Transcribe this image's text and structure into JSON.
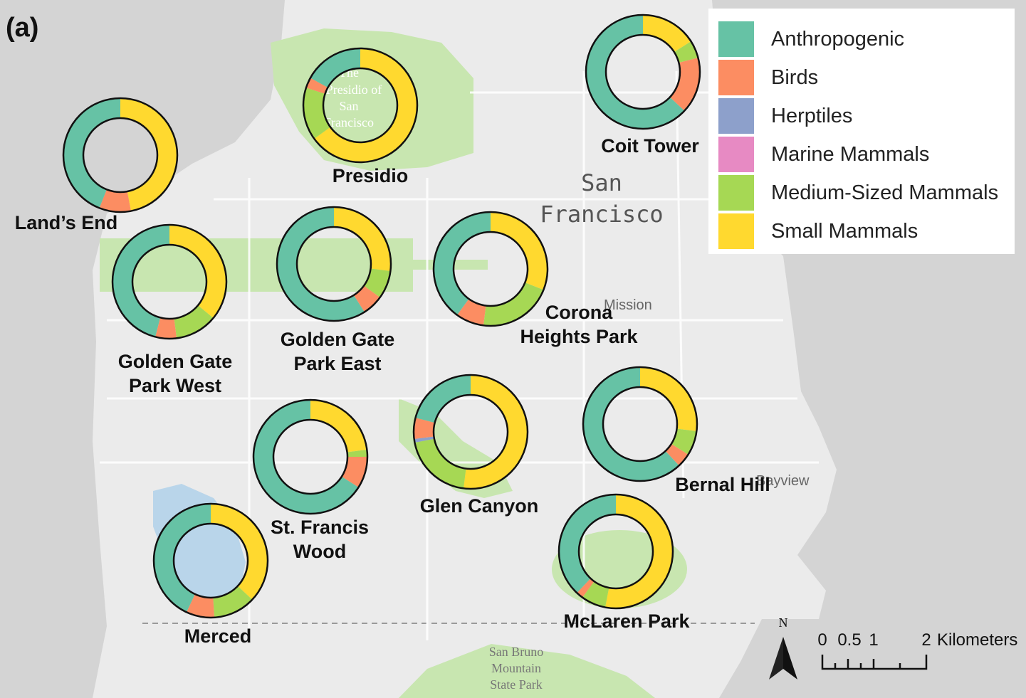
{
  "panel_label": "(a)",
  "legend": {
    "items": [
      {
        "label": "Anthropogenic",
        "color": "#66c2a5"
      },
      {
        "label": "Birds",
        "color": "#fc8d62"
      },
      {
        "label": "Herptiles",
        "color": "#8da0cb"
      },
      {
        "label": "Marine Mammals",
        "color": "#e78ac3"
      },
      {
        "label": "Medium-Sized Mammals",
        "color": "#a6d854"
      },
      {
        "label": "Small Mammals",
        "color": "#ffd92f"
      }
    ]
  },
  "base_map_labels": {
    "city_line1": "San",
    "city_line2": "Francisco",
    "mission": "Mission",
    "bayview": "Bayview",
    "presidio_line1": "The",
    "presidio_line2": "Presidio of",
    "presidio_line3": "San",
    "presidio_line4": "Francisco",
    "sanbruno_line1": "San Bruno",
    "sanbruno_line2": "Mountain",
    "sanbruno_line3": "State Park"
  },
  "scale_bar": {
    "north": "N",
    "tick_labels": [
      "0",
      "0.5",
      "1",
      "2"
    ],
    "unit": "Kilometers"
  },
  "chart_data": {
    "type": "donut",
    "categories": [
      "Anthropogenic",
      "Birds",
      "Herptiles",
      "Marine Mammals",
      "Medium-Sized Mammals",
      "Small Mammals"
    ],
    "sites": [
      {
        "name": "Coit Tower",
        "label_lines": [
          "Coit Tower"
        ],
        "values": [
          0.63,
          0.16,
          0.0,
          0.0,
          0.05,
          0.16
        ]
      },
      {
        "name": "Presidio",
        "label_lines": [
          "Presidio"
        ],
        "values": [
          0.17,
          0.03,
          0.0,
          0.0,
          0.15,
          0.65
        ]
      },
      {
        "name": "Land's End",
        "label_lines": [
          "Land’s End"
        ],
        "values": [
          0.44,
          0.09,
          0.0,
          0.0,
          0.0,
          0.47
        ]
      },
      {
        "name": "Golden Gate Park West",
        "label_lines": [
          "Golden Gate",
          "Park West"
        ],
        "values": [
          0.46,
          0.06,
          0.0,
          0.0,
          0.12,
          0.36
        ]
      },
      {
        "name": "Golden Gate Park East",
        "label_lines": [
          "Golden Gate",
          "Park East"
        ],
        "values": [
          0.59,
          0.06,
          0.0,
          0.0,
          0.08,
          0.27
        ]
      },
      {
        "name": "Corona Heights Park",
        "label_lines": [
          "Corona",
          "Heights Park"
        ],
        "values": [
          0.4,
          0.08,
          0.0,
          0.0,
          0.21,
          0.31
        ]
      },
      {
        "name": "St. Francis Wood",
        "label_lines": [
          "St. Francis",
          "Wood"
        ],
        "values": [
          0.66,
          0.09,
          0.0,
          0.0,
          0.02,
          0.23
        ]
      },
      {
        "name": "Glen Canyon",
        "label_lines": [
          "Glen Canyon"
        ],
        "values": [
          0.21,
          0.06,
          0.01,
          0.0,
          0.2,
          0.52
        ]
      },
      {
        "name": "Bernal Hill",
        "label_lines": [
          "Bernal Hill"
        ],
        "values": [
          0.62,
          0.04,
          0.0,
          0.0,
          0.07,
          0.27
        ]
      },
      {
        "name": "Merced",
        "label_lines": [
          "Merced"
        ],
        "values": [
          0.43,
          0.08,
          0.0,
          0.0,
          0.12,
          0.37
        ]
      },
      {
        "name": "McLaren Park",
        "label_lines": [
          "McLaren Park"
        ],
        "values": [
          0.38,
          0.02,
          0.0,
          0.0,
          0.07,
          0.53
        ]
      }
    ]
  }
}
